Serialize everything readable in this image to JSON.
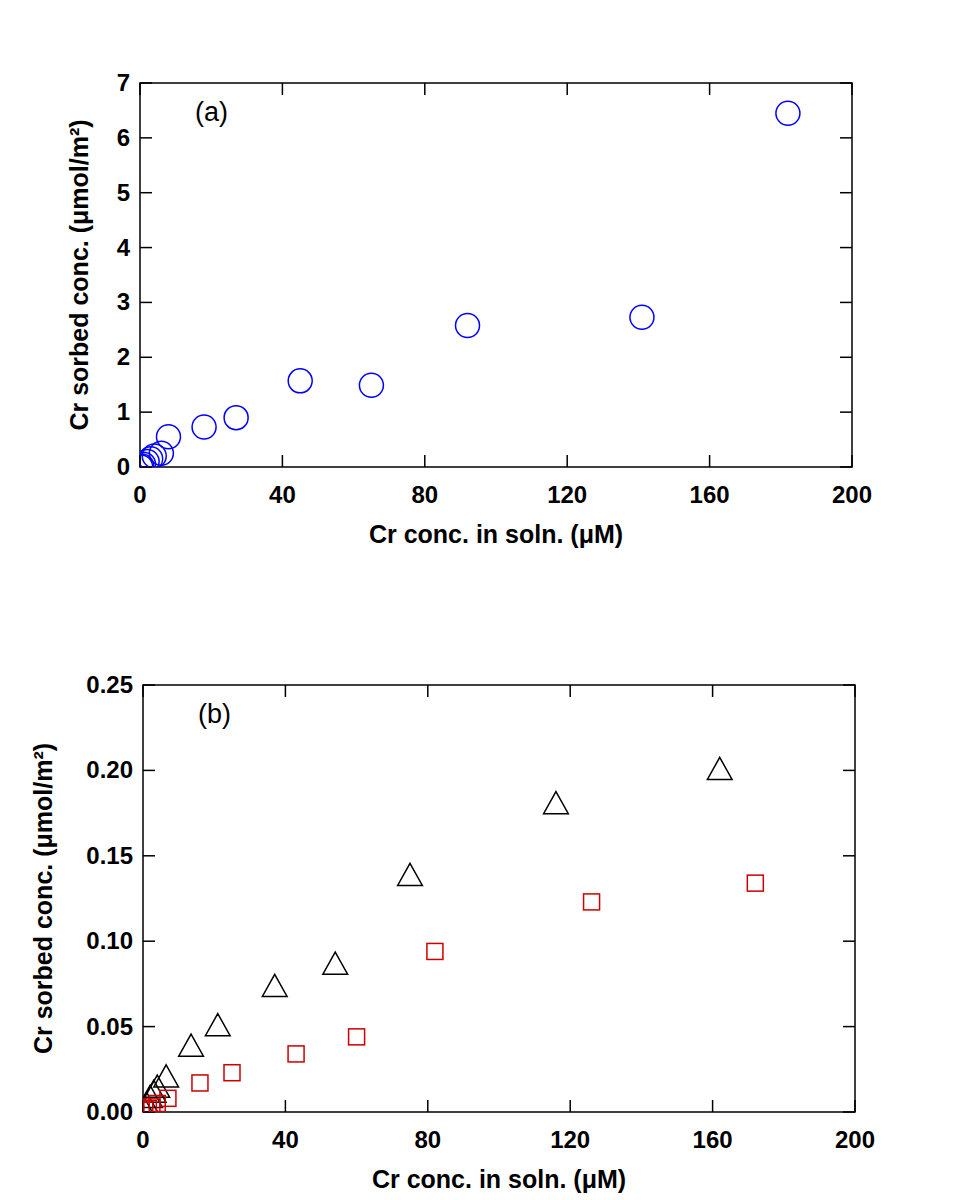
{
  "chart_data": [
    {
      "type": "scatter",
      "annotation": "(a)",
      "x_label": "Cr conc. in soln. (μM)",
      "y_label": "Cr sorbed conc. (μmol/m²)",
      "xlim": [
        0,
        200
      ],
      "ylim": [
        0,
        7
      ],
      "xticks": [
        0,
        40,
        80,
        120,
        160,
        200
      ],
      "yticks": [
        0,
        1,
        2,
        3,
        4,
        5,
        6,
        7
      ],
      "series": [
        {
          "color": "#0000ff",
          "marker": "circle",
          "x": [
            0.2,
            0.5,
            1,
            2,
            3,
            4,
            6,
            8,
            18,
            27,
            45,
            65,
            92,
            141,
            182
          ],
          "values": [
            0.0,
            0.02,
            0.05,
            0.1,
            0.15,
            0.2,
            0.25,
            0.55,
            0.73,
            0.9,
            1.57,
            1.49,
            2.58,
            2.73,
            6.45
          ]
        }
      ]
    },
    {
      "type": "scatter",
      "annotation": "(b)",
      "x_label": "Cr conc. in soln. (μM)",
      "y_label": "Cr sorbed conc. (μmol/m²)",
      "xlim": [
        0,
        200
      ],
      "ylim": [
        0,
        0.25
      ],
      "xticks": [
        0,
        40,
        80,
        120,
        160,
        200
      ],
      "yticks": [
        {
          "value": 0,
          "label": "0.00"
        },
        {
          "value": 0.05,
          "label": "0.05"
        },
        {
          "value": 0.1,
          "label": "0.10"
        },
        {
          "value": 0.15,
          "label": "0.15"
        },
        {
          "value": 0.2,
          "label": "0.20"
        },
        {
          "value": 0.25,
          "label": "0.25"
        }
      ],
      "series": [
        {
          "color": "#000000",
          "marker": "triangle",
          "x": [
            0.3,
            1,
            2,
            3,
            4,
            6.5,
            13.5,
            21,
            37,
            54,
            75,
            116,
            162
          ],
          "values": [
            0.001,
            0.004,
            0.008,
            0.011,
            0.014,
            0.02,
            0.038,
            0.05,
            0.073,
            0.086,
            0.138,
            0.18,
            0.2
          ]
        },
        {
          "color": "#cc0000",
          "marker": "square",
          "x": [
            0.5,
            1.5,
            2.5,
            4,
            7,
            16,
            25,
            43,
            60,
            82,
            126,
            172
          ],
          "values": [
            0.001,
            0.002,
            0.003,
            0.005,
            0.008,
            0.017,
            0.023,
            0.034,
            0.044,
            0.094,
            0.123,
            0.134
          ]
        }
      ]
    }
  ]
}
